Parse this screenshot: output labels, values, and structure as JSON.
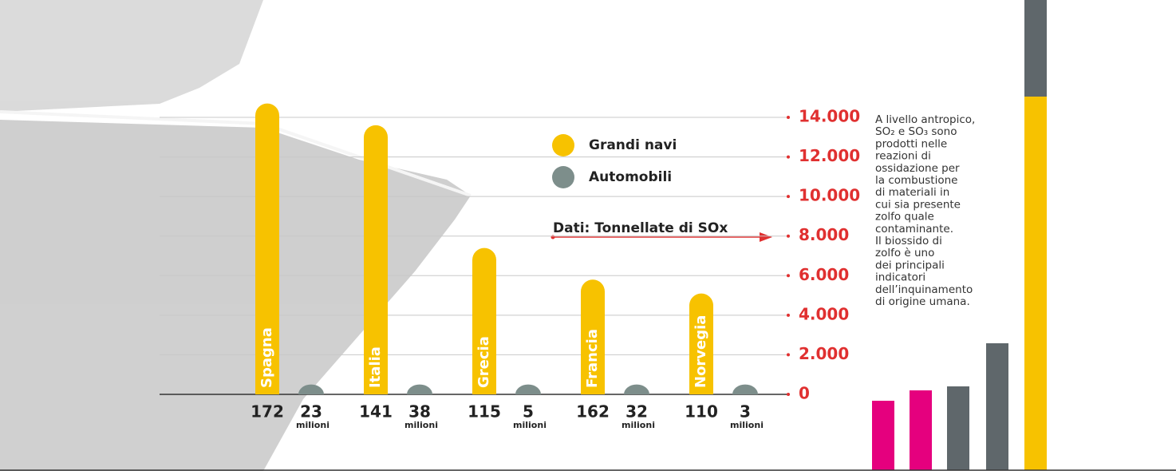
{
  "chart_data": {
    "type": "bar",
    "categories": [
      "Spagna",
      "Italia",
      "Grecia",
      "Francia",
      "Norvegia"
    ],
    "series": [
      {
        "name": "Grandi navi",
        "color": "#f7c200",
        "values": [
          14700,
          13600,
          7400,
          5800,
          5100
        ],
        "counts": [
          172,
          141,
          115,
          162,
          110
        ]
      },
      {
        "name": "Automobili",
        "color": "#7d8e8b",
        "values": [
          500,
          500,
          500,
          500,
          500
        ],
        "counts": [
          23,
          38,
          5,
          32,
          3
        ],
        "unit": "milioni"
      }
    ],
    "annotation": "Dati: Tonnellate di SOx",
    "ylim": [
      0,
      14000
    ],
    "yticks": [
      0,
      {
        "value": 2000,
        "label": "2.000"
      },
      {
        "value": 4000,
        "label": "4.000"
      },
      {
        "value": 6000,
        "label": "6.000"
      },
      {
        "value": 8000,
        "label": "8.000"
      },
      {
        "value": 10000,
        "label": "10.000"
      },
      {
        "value": 12000,
        "label": "12.000"
      },
      {
        "value": 14000,
        "label": "14.000"
      }
    ],
    "grid": true,
    "note": [
      "A livello antropico,",
      "SO₂ e SO₃ sono",
      "prodotti nelle",
      "reazioni di",
      "ossidazione per",
      "la combustione",
      "di materiali in",
      "cui sia presente",
      "zolfo quale",
      "contaminante.",
      "Il biossido di",
      "zolfo è uno",
      "dei principali",
      "indicatori",
      "dell’inquinamento",
      "di origine umana."
    ]
  }
}
